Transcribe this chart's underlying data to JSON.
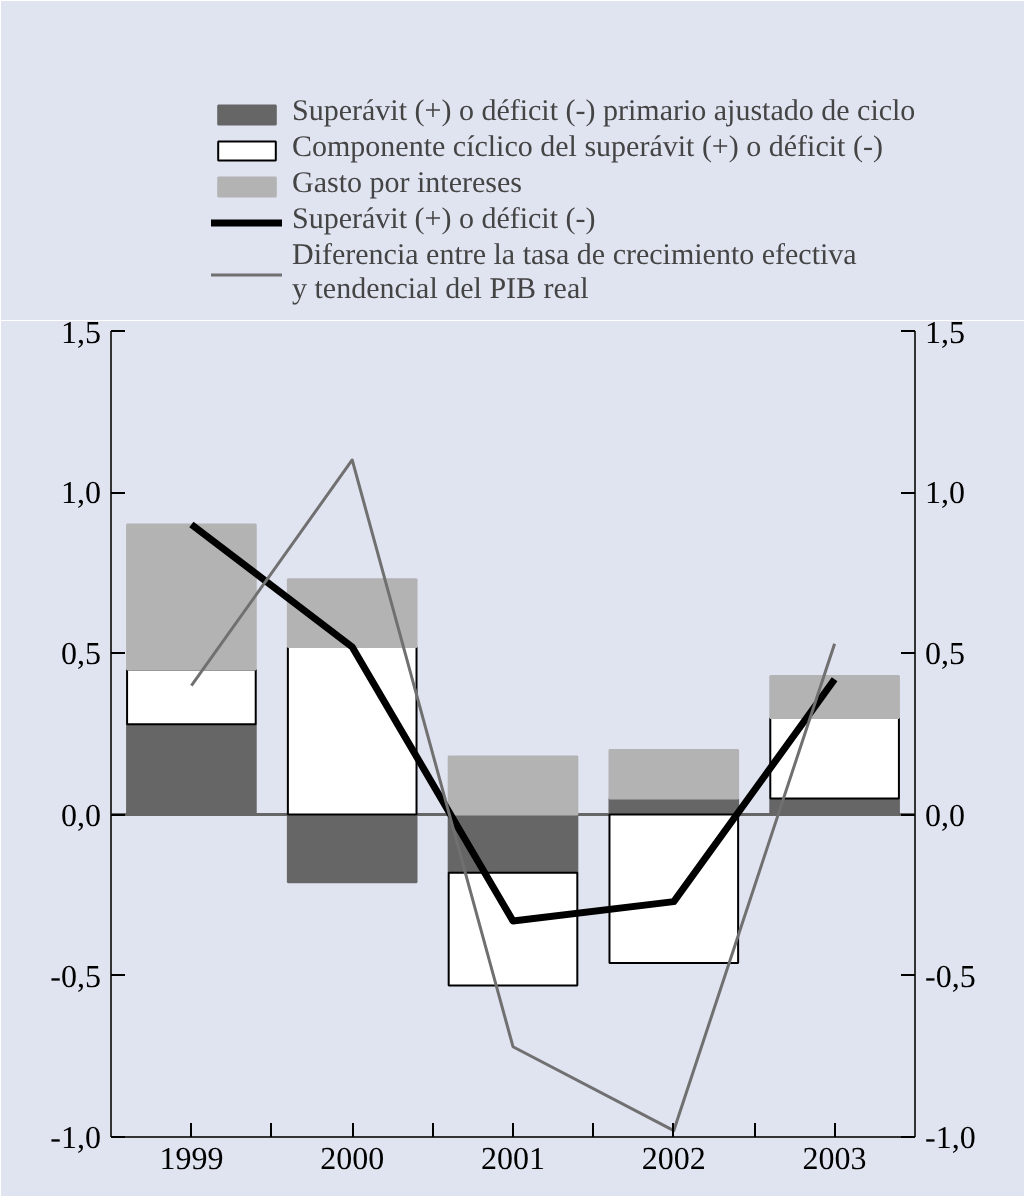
{
  "chart_data": {
    "type": "bar",
    "stacked": true,
    "categories": [
      "1999",
      "2000",
      "2001",
      "2002",
      "2003"
    ],
    "series": [
      {
        "name": "Superávit (+) o déficit (-) primario ajustado de ciclo",
        "color": "#666666",
        "values": [
          0.28,
          -0.21,
          -0.18,
          0.05,
          0.05
        ]
      },
      {
        "name": "Componente cíclico del superávit (+) o déficit (-)",
        "color": "#ffffff",
        "values": [
          0.17,
          0.52,
          -0.35,
          -0.46,
          0.25
        ]
      },
      {
        "name": "Gasto por intereses",
        "color": "#b3b3b3",
        "values": [
          0.45,
          0.21,
          0.18,
          0.15,
          0.13
        ]
      },
      {
        "name": "Superávit (+) o déficit (-)",
        "type": "line",
        "color": "#000000",
        "values": [
          0.9,
          0.52,
          -0.33,
          -0.27,
          0.42
        ]
      },
      {
        "name": "Diferencia entre la tasa de crecimiento efectiva\ny tendencial del PIB real",
        "type": "line",
        "color": "#707070",
        "values": [
          0.4,
          1.1,
          -0.72,
          -0.98,
          0.53
        ]
      }
    ],
    "ylim": [
      -1.0,
      1.5
    ],
    "yticks": [
      {
        "value": -1.0,
        "label": "-1,0"
      },
      {
        "value": -0.5,
        "label": "-0,5"
      },
      {
        "value": 0.0,
        "label": "0,0"
      },
      {
        "value": 0.5,
        "label": "0,5"
      },
      {
        "value": 1.0,
        "label": "1,0"
      },
      {
        "value": 1.5,
        "label": "1,5"
      }
    ],
    "y2lim": [
      -1.0,
      1.5
    ],
    "y2ticks": [
      {
        "value": -1.0,
        "label": "-1,0"
      },
      {
        "value": -0.5,
        "label": "-0,5"
      },
      {
        "value": 0.0,
        "label": "0,0"
      },
      {
        "value": 0.5,
        "label": "0,5"
      },
      {
        "value": 1.0,
        "label": "1,0"
      },
      {
        "value": 1.5,
        "label": "1,5"
      }
    ],
    "ref_lines": [
      {
        "axis": "y",
        "value": 0,
        "color": "#666666"
      }
    ],
    "grid": false,
    "legend": "top"
  }
}
